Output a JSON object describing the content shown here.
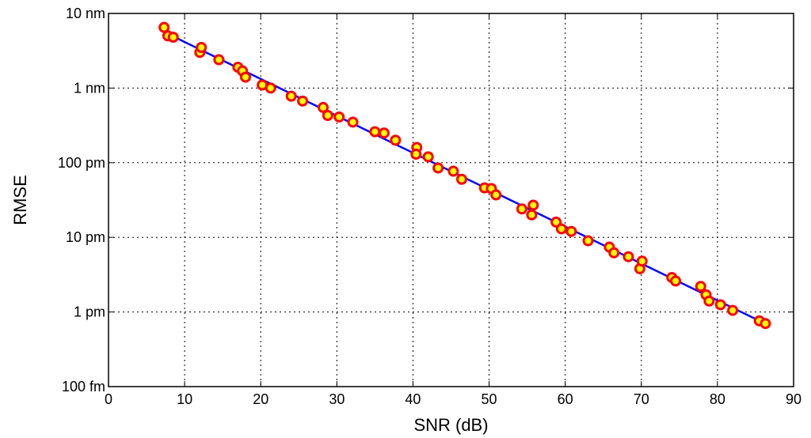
{
  "chart_data": {
    "type": "scatter",
    "title": "",
    "xlabel": "SNR (dB)",
    "ylabel": "RMSE",
    "xlim": [
      0,
      90
    ],
    "ylim": [
      1e-13,
      1e-08
    ],
    "y_scale": "log",
    "grid": true,
    "x_ticks": [
      0,
      10,
      20,
      30,
      40,
      50,
      60,
      70,
      80,
      90
    ],
    "x_tick_labels": [
      "0",
      "10",
      "20",
      "30",
      "40",
      "50",
      "60",
      "70",
      "80",
      "90"
    ],
    "y_ticks": [
      1e-13,
      1e-12,
      1e-11,
      1e-10,
      1e-09,
      1e-08
    ],
    "y_tick_labels": [
      "100 fm",
      "1 pm",
      "10 pm",
      "100 pm",
      "1 nm",
      "10 nm"
    ],
    "series": [
      {
        "type": "scatter",
        "marker": "circle",
        "face_color": "#ffff00",
        "edge_color": "#ff0000",
        "points": [
          [
            7.3,
            6.5e-09
          ],
          [
            7.8,
            5e-09
          ],
          [
            8.5,
            4.8e-09
          ],
          [
            12.0,
            3e-09
          ],
          [
            12.2,
            3.5e-09
          ],
          [
            14.5,
            2.4e-09
          ],
          [
            17.0,
            1.9e-09
          ],
          [
            17.6,
            1.7e-09
          ],
          [
            18.0,
            1.4e-09
          ],
          [
            20.2,
            1.1e-09
          ],
          [
            21.3,
            1e-09
          ],
          [
            24.0,
            7.8e-10
          ],
          [
            25.5,
            6.7e-10
          ],
          [
            28.2,
            5.5e-10
          ],
          [
            28.8,
            4.3e-10
          ],
          [
            30.3,
            4.1e-10
          ],
          [
            32.1,
            3.5e-10
          ],
          [
            35.0,
            2.6e-10
          ],
          [
            36.2,
            2.5e-10
          ],
          [
            37.7,
            2e-10
          ],
          [
            40.5,
            1.6e-10
          ],
          [
            40.4,
            1.3e-10
          ],
          [
            42.0,
            1.2e-10
          ],
          [
            43.3,
            8.5e-11
          ],
          [
            45.3,
            7.7e-11
          ],
          [
            46.4,
            6e-11
          ],
          [
            49.4,
            4.6e-11
          ],
          [
            50.3,
            4.5e-11
          ],
          [
            50.9,
            3.7e-11
          ],
          [
            54.3,
            2.4e-11
          ],
          [
            55.6,
            2e-11
          ],
          [
            55.8,
            2.7e-11
          ],
          [
            58.8,
            1.6e-11
          ],
          [
            59.5,
            1.3e-11
          ],
          [
            60.8,
            1.2e-11
          ],
          [
            63.0,
            9e-12
          ],
          [
            65.8,
            7.4e-12
          ],
          [
            66.4,
            6.2e-12
          ],
          [
            68.3,
            5.5e-12
          ],
          [
            69.8,
            3.8e-12
          ],
          [
            70.1,
            4.8e-12
          ],
          [
            74.0,
            2.9e-12
          ],
          [
            74.5,
            2.6e-12
          ],
          [
            77.8,
            2.2e-12
          ],
          [
            78.5,
            1.7e-12
          ],
          [
            78.9,
            1.4e-12
          ],
          [
            80.4,
            1.25e-12
          ],
          [
            82.0,
            1.05e-12
          ],
          [
            85.5,
            7.6e-13
          ],
          [
            86.3,
            7e-13
          ]
        ]
      },
      {
        "type": "line",
        "color": "#0000ff",
        "points": [
          [
            8.0,
            5.2e-09
          ],
          [
            86.5,
            6.8e-13
          ]
        ]
      }
    ]
  }
}
